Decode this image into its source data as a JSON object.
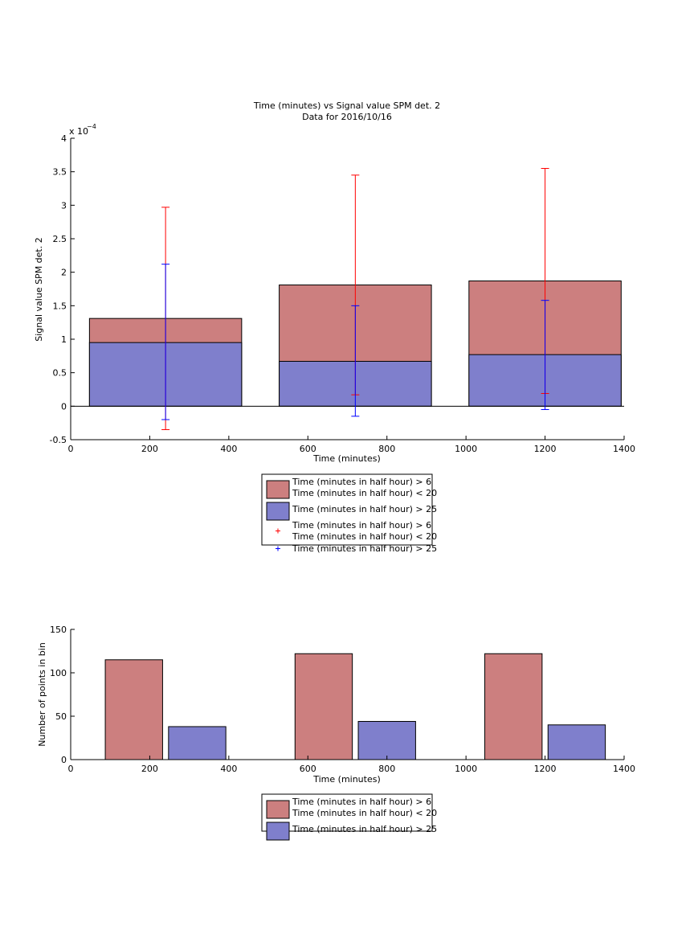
{
  "colors": {
    "series_a": "#cc7f7f",
    "series_b": "#7f7fcc",
    "errbar_a": "#ff0000",
    "errbar_b": "#0000ff"
  },
  "chart_data": [
    {
      "type": "bar",
      "stacked": true,
      "title": "Time (minutes) vs Signal value SPM det. 2",
      "subtitle": "Data for 2016/10/16",
      "xlabel": "Time (minutes)",
      "ylabel": "Signal value SPM det. 2",
      "exponent_label": "x 10",
      "exponent_power": "−4",
      "xlim": [
        0,
        1400
      ],
      "ylim": [
        -0.5,
        4
      ],
      "y_scale_factor": 0.0001,
      "xticks": [
        0,
        200,
        400,
        600,
        800,
        1000,
        1200,
        1400
      ],
      "yticks": [
        "-0.5",
        "0",
        "0.5",
        "1",
        "1.5",
        "2",
        "2.5",
        "3",
        "3.5",
        "4"
      ],
      "ytick_values": [
        -0.5,
        0,
        0.5,
        1,
        1.5,
        2,
        2.5,
        3,
        3.5,
        4
      ],
      "grid": false,
      "legend_position": "below",
      "bar_centers": [
        240,
        720,
        1200
      ],
      "bar_width": 385,
      "series": [
        {
          "name": "Time (minutes in half hour) > 6\nTime (minutes in half hour) < 20",
          "values": [
            1.31,
            1.81,
            1.87
          ]
        },
        {
          "name": "Time (minutes in half hour) > 25",
          "values": [
            0.95,
            0.67,
            0.77
          ]
        }
      ],
      "error_bars": [
        {
          "name": "Time (minutes in half hour) > 6\nTime (minutes in half hour) < 20",
          "x": [
            240,
            720,
            1200
          ],
          "low": [
            -0.35,
            0.17,
            0.19
          ],
          "high": [
            2.97,
            3.45,
            3.55
          ]
        },
        {
          "name": "Time (minutes in half hour) > 25",
          "x": [
            240,
            720,
            1200
          ],
          "low": [
            -0.2,
            -0.15,
            -0.05
          ],
          "high": [
            2.12,
            1.5,
            1.58
          ]
        }
      ],
      "legend": [
        {
          "kind": "patch",
          "series": "a",
          "lines": [
            "Time (minutes in half hour) > 6",
            "Time (minutes in half hour) < 20"
          ]
        },
        {
          "kind": "patch",
          "series": "b",
          "lines": [
            "Time (minutes in half hour) > 25"
          ]
        },
        {
          "kind": "marker",
          "series": "a",
          "lines": [
            "Time (minutes in half hour) > 6",
            "Time (minutes in half hour) < 20"
          ]
        },
        {
          "kind": "marker",
          "series": "b",
          "lines": [
            "Time (minutes in half hour) > 25"
          ]
        }
      ]
    },
    {
      "type": "bar",
      "xlabel": "Time (minutes)",
      "ylabel": "Number of points in bin",
      "xlim": [
        0,
        1400
      ],
      "ylim": [
        0,
        150
      ],
      "xticks": [
        0,
        200,
        400,
        600,
        800,
        1000,
        1200,
        1400
      ],
      "yticks": [
        "0",
        "50",
        "100",
        "150"
      ],
      "ytick_values": [
        0,
        50,
        100,
        150
      ],
      "grid": false,
      "legend_position": "below",
      "series": [
        {
          "name": "Time (minutes in half hour) > 6\nTime (minutes in half hour) < 20",
          "x": [
            160,
            640,
            1120
          ],
          "values": [
            115,
            122,
            122
          ]
        },
        {
          "name": "Time (minutes in half hour) > 25",
          "x": [
            320,
            800,
            1280
          ],
          "values": [
            38,
            44,
            40
          ]
        }
      ],
      "bar_width": 145,
      "legend": [
        {
          "kind": "patch",
          "series": "a",
          "lines": [
            "Time (minutes in half hour) > 6",
            "Time (minutes in half hour) < 20"
          ]
        },
        {
          "kind": "patch",
          "series": "b",
          "lines": [
            "Time (minutes in half hour) > 25"
          ]
        }
      ]
    }
  ]
}
